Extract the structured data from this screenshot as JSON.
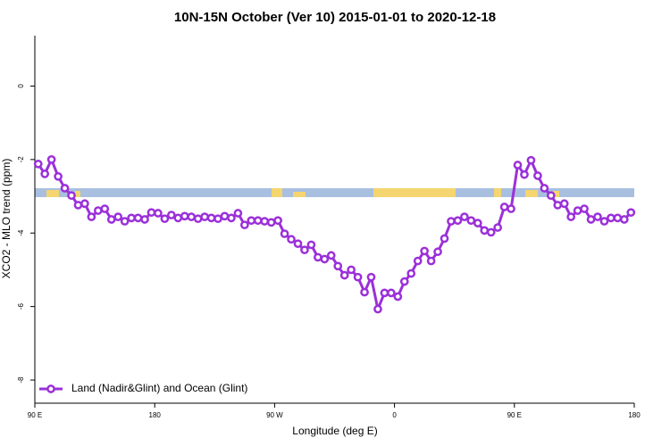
{
  "chart_data": {
    "type": "line",
    "title": "10N-15N October (Ver 10)   2015-01-01 to 2020-12-18",
    "x_label": "Longitude (deg E)",
    "y_label": "XCO2 - MLO trend (ppm)",
    "xlim": [
      90,
      540
    ],
    "ylim": [
      -8.63,
      1.37
    ],
    "xticks": [
      {
        "value": 90,
        "label": "90 E"
      },
      180,
      {
        "value": 270,
        "label": "90 W"
      },
      {
        "value": 360,
        "label": "0"
      },
      {
        "value": 450,
        "label": "90 E"
      },
      {
        "value": 540,
        "label": "180"
      }
    ],
    "yticks": [
      0,
      -2,
      -4,
      -6,
      -8
    ],
    "legend": "bottomleft",
    "x": [
      92.5,
      97.5,
      102.5,
      107.5,
      112.5,
      117.5,
      122.5,
      127.5,
      132.5,
      137.5,
      142.5,
      147.5,
      152.5,
      157.5,
      162.5,
      167.5,
      172.5,
      177.5,
      182.5,
      187.5,
      192.5,
      197.5,
      202.5,
      207.5,
      212.5,
      217.5,
      222.5,
      227.5,
      232.5,
      237.5,
      242.5,
      247.5,
      252.5,
      257.5,
      262.5,
      267.5,
      272.5,
      277.5,
      282.5,
      287.5,
      292.5,
      297.5,
      302.5,
      307.5,
      312.5,
      317.5,
      322.5,
      327.5,
      332.5,
      337.5,
      342.5,
      347.5,
      352.5,
      357.5,
      362.5,
      367.5,
      372.5,
      377.5,
      382.5,
      387.5,
      392.5,
      397.5,
      402.5,
      407.5,
      412.5,
      417.5,
      422.5,
      427.5,
      432.5,
      437.5,
      442.5,
      447.5,
      452.5,
      457.5,
      462.5,
      467.5,
      472.5,
      477.5,
      482.5,
      487.5,
      492.5,
      497.5,
      502.5,
      507.5,
      512.5,
      517.5,
      522.5,
      527.5,
      532.5,
      537.5
    ],
    "series": [
      {
        "name": "Land (Nadir&Glint) and Ocean (Glint)",
        "color": "#9b30d9",
        "values": [
          -2.12,
          -2.39,
          -2.0,
          -2.46,
          -2.78,
          -2.98,
          -3.24,
          -3.2,
          -3.56,
          -3.39,
          -3.34,
          -3.63,
          -3.56,
          -3.68,
          -3.59,
          -3.59,
          -3.63,
          -3.44,
          -3.46,
          -3.61,
          -3.51,
          -3.59,
          -3.54,
          -3.56,
          -3.61,
          -3.56,
          -3.59,
          -3.61,
          -3.54,
          -3.59,
          -3.46,
          -3.78,
          -3.66,
          -3.66,
          -3.68,
          -3.71,
          -3.66,
          -4.02,
          -4.17,
          -4.29,
          -4.46,
          -4.32,
          -4.66,
          -4.71,
          -4.61,
          -4.9,
          -5.15,
          -5.0,
          -5.2,
          -5.61,
          -5.2,
          -6.07,
          -5.63,
          -5.63,
          -5.73,
          -5.32,
          -5.1,
          -4.76,
          -4.49,
          -4.76,
          -4.51,
          -4.15,
          -3.68,
          -3.66,
          -3.56,
          -3.66,
          -3.73,
          -3.93,
          -3.98,
          -3.85,
          -3.29,
          -3.34,
          -2.15,
          -2.41,
          -2.02,
          -2.44,
          -2.78,
          -2.98,
          -3.24,
          -3.2,
          -3.56,
          -3.39,
          -3.34,
          -3.63,
          -3.56,
          -3.68,
          -3.59,
          -3.59,
          -3.63,
          -3.44
        ]
      }
    ]
  }
}
